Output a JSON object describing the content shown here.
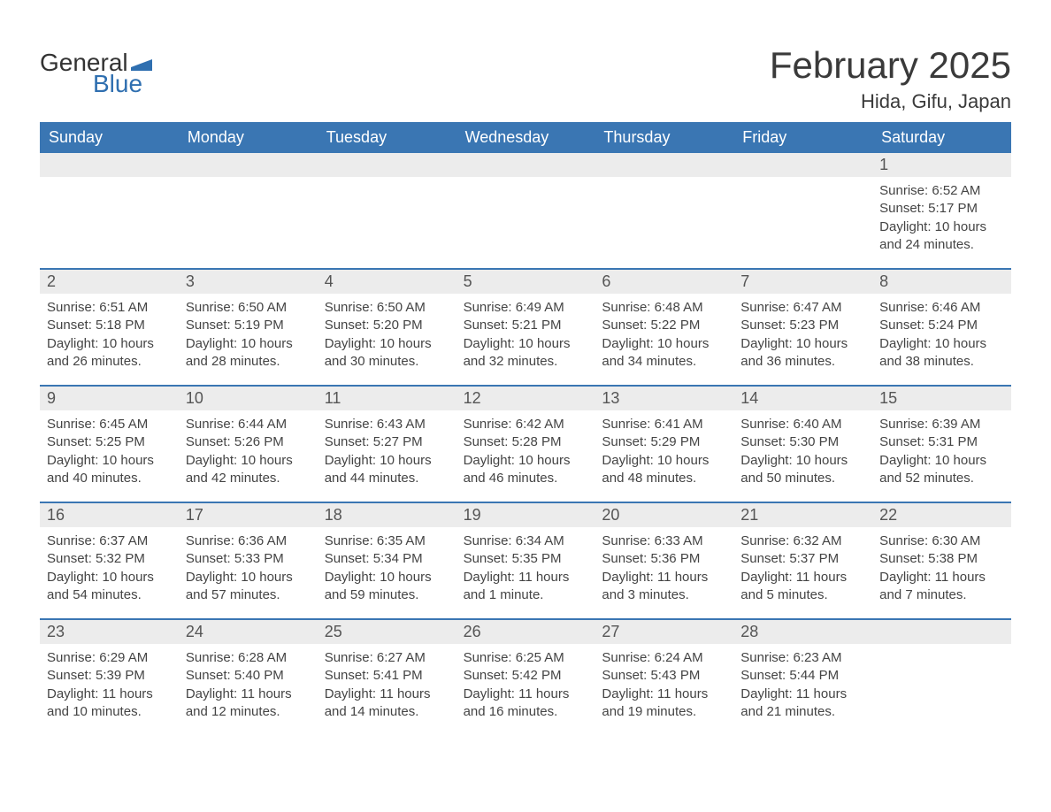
{
  "logo": {
    "text_general": "General",
    "text_blue": "Blue",
    "flag_color": "#2f6fb0"
  },
  "title": "February 2025",
  "location": "Hida, Gifu, Japan",
  "colors": {
    "header_bg": "#3a76b3",
    "header_text": "#ffffff",
    "daynum_bg": "#ececec",
    "daynum_text": "#555555",
    "body_text": "#444444",
    "rule": "#3a76b3",
    "logo_blue": "#2f6fb0",
    "page_bg": "#ffffff"
  },
  "typography": {
    "title_fontsize": 42,
    "location_fontsize": 22,
    "header_fontsize": 18,
    "daynum_fontsize": 18,
    "body_fontsize": 15,
    "font_family": "Arial"
  },
  "day_headers": [
    "Sunday",
    "Monday",
    "Tuesday",
    "Wednesday",
    "Thursday",
    "Friday",
    "Saturday"
  ],
  "weeks": [
    [
      {
        "num": "",
        "sunrise": "",
        "sunset": "",
        "daylight": ""
      },
      {
        "num": "",
        "sunrise": "",
        "sunset": "",
        "daylight": ""
      },
      {
        "num": "",
        "sunrise": "",
        "sunset": "",
        "daylight": ""
      },
      {
        "num": "",
        "sunrise": "",
        "sunset": "",
        "daylight": ""
      },
      {
        "num": "",
        "sunrise": "",
        "sunset": "",
        "daylight": ""
      },
      {
        "num": "",
        "sunrise": "",
        "sunset": "",
        "daylight": ""
      },
      {
        "num": "1",
        "sunrise": "Sunrise: 6:52 AM",
        "sunset": "Sunset: 5:17 PM",
        "daylight": "Daylight: 10 hours and 24 minutes."
      }
    ],
    [
      {
        "num": "2",
        "sunrise": "Sunrise: 6:51 AM",
        "sunset": "Sunset: 5:18 PM",
        "daylight": "Daylight: 10 hours and 26 minutes."
      },
      {
        "num": "3",
        "sunrise": "Sunrise: 6:50 AM",
        "sunset": "Sunset: 5:19 PM",
        "daylight": "Daylight: 10 hours and 28 minutes."
      },
      {
        "num": "4",
        "sunrise": "Sunrise: 6:50 AM",
        "sunset": "Sunset: 5:20 PM",
        "daylight": "Daylight: 10 hours and 30 minutes."
      },
      {
        "num": "5",
        "sunrise": "Sunrise: 6:49 AM",
        "sunset": "Sunset: 5:21 PM",
        "daylight": "Daylight: 10 hours and 32 minutes."
      },
      {
        "num": "6",
        "sunrise": "Sunrise: 6:48 AM",
        "sunset": "Sunset: 5:22 PM",
        "daylight": "Daylight: 10 hours and 34 minutes."
      },
      {
        "num": "7",
        "sunrise": "Sunrise: 6:47 AM",
        "sunset": "Sunset: 5:23 PM",
        "daylight": "Daylight: 10 hours and 36 minutes."
      },
      {
        "num": "8",
        "sunrise": "Sunrise: 6:46 AM",
        "sunset": "Sunset: 5:24 PM",
        "daylight": "Daylight: 10 hours and 38 minutes."
      }
    ],
    [
      {
        "num": "9",
        "sunrise": "Sunrise: 6:45 AM",
        "sunset": "Sunset: 5:25 PM",
        "daylight": "Daylight: 10 hours and 40 minutes."
      },
      {
        "num": "10",
        "sunrise": "Sunrise: 6:44 AM",
        "sunset": "Sunset: 5:26 PM",
        "daylight": "Daylight: 10 hours and 42 minutes."
      },
      {
        "num": "11",
        "sunrise": "Sunrise: 6:43 AM",
        "sunset": "Sunset: 5:27 PM",
        "daylight": "Daylight: 10 hours and 44 minutes."
      },
      {
        "num": "12",
        "sunrise": "Sunrise: 6:42 AM",
        "sunset": "Sunset: 5:28 PM",
        "daylight": "Daylight: 10 hours and 46 minutes."
      },
      {
        "num": "13",
        "sunrise": "Sunrise: 6:41 AM",
        "sunset": "Sunset: 5:29 PM",
        "daylight": "Daylight: 10 hours and 48 minutes."
      },
      {
        "num": "14",
        "sunrise": "Sunrise: 6:40 AM",
        "sunset": "Sunset: 5:30 PM",
        "daylight": "Daylight: 10 hours and 50 minutes."
      },
      {
        "num": "15",
        "sunrise": "Sunrise: 6:39 AM",
        "sunset": "Sunset: 5:31 PM",
        "daylight": "Daylight: 10 hours and 52 minutes."
      }
    ],
    [
      {
        "num": "16",
        "sunrise": "Sunrise: 6:37 AM",
        "sunset": "Sunset: 5:32 PM",
        "daylight": "Daylight: 10 hours and 54 minutes."
      },
      {
        "num": "17",
        "sunrise": "Sunrise: 6:36 AM",
        "sunset": "Sunset: 5:33 PM",
        "daylight": "Daylight: 10 hours and 57 minutes."
      },
      {
        "num": "18",
        "sunrise": "Sunrise: 6:35 AM",
        "sunset": "Sunset: 5:34 PM",
        "daylight": "Daylight: 10 hours and 59 minutes."
      },
      {
        "num": "19",
        "sunrise": "Sunrise: 6:34 AM",
        "sunset": "Sunset: 5:35 PM",
        "daylight": "Daylight: 11 hours and 1 minute."
      },
      {
        "num": "20",
        "sunrise": "Sunrise: 6:33 AM",
        "sunset": "Sunset: 5:36 PM",
        "daylight": "Daylight: 11 hours and 3 minutes."
      },
      {
        "num": "21",
        "sunrise": "Sunrise: 6:32 AM",
        "sunset": "Sunset: 5:37 PM",
        "daylight": "Daylight: 11 hours and 5 minutes."
      },
      {
        "num": "22",
        "sunrise": "Sunrise: 6:30 AM",
        "sunset": "Sunset: 5:38 PM",
        "daylight": "Daylight: 11 hours and 7 minutes."
      }
    ],
    [
      {
        "num": "23",
        "sunrise": "Sunrise: 6:29 AM",
        "sunset": "Sunset: 5:39 PM",
        "daylight": "Daylight: 11 hours and 10 minutes."
      },
      {
        "num": "24",
        "sunrise": "Sunrise: 6:28 AM",
        "sunset": "Sunset: 5:40 PM",
        "daylight": "Daylight: 11 hours and 12 minutes."
      },
      {
        "num": "25",
        "sunrise": "Sunrise: 6:27 AM",
        "sunset": "Sunset: 5:41 PM",
        "daylight": "Daylight: 11 hours and 14 minutes."
      },
      {
        "num": "26",
        "sunrise": "Sunrise: 6:25 AM",
        "sunset": "Sunset: 5:42 PM",
        "daylight": "Daylight: 11 hours and 16 minutes."
      },
      {
        "num": "27",
        "sunrise": "Sunrise: 6:24 AM",
        "sunset": "Sunset: 5:43 PM",
        "daylight": "Daylight: 11 hours and 19 minutes."
      },
      {
        "num": "28",
        "sunrise": "Sunrise: 6:23 AM",
        "sunset": "Sunset: 5:44 PM",
        "daylight": "Daylight: 11 hours and 21 minutes."
      },
      {
        "num": "",
        "sunrise": "",
        "sunset": "",
        "daylight": ""
      }
    ]
  ]
}
